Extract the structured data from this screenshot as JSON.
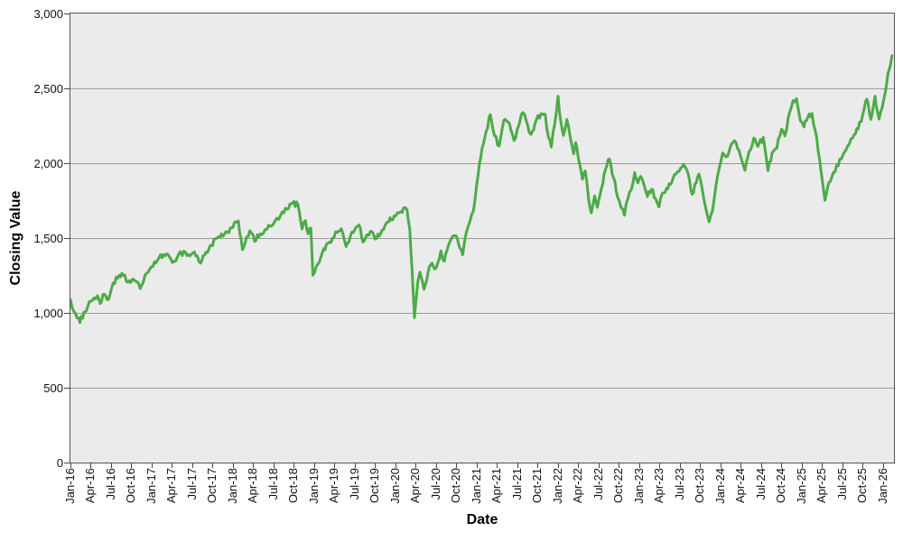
{
  "chart_data": {
    "type": "line",
    "title": "",
    "xlabel": "Date",
    "ylabel": "Closing Value",
    "ylim": [
      0,
      3000
    ],
    "y_tick_interval": 500,
    "y_tick_labels": [
      "0",
      "500",
      "1,000",
      "1,500",
      "2,000",
      "2,500",
      "3,000"
    ],
    "x_tick_labels": [
      "Jan-16",
      "Apr-16",
      "Jul-16",
      "Oct-16",
      "Jan-17",
      "Apr-17",
      "Jul-17",
      "Oct-17",
      "Jan-18",
      "Apr-18",
      "Jul-18",
      "Oct-18",
      "Jan-19",
      "Apr-19",
      "Jul-19",
      "Oct-19",
      "Jan-20",
      "Apr-20",
      "Jul-20",
      "Oct-20",
      "Jan-21",
      "Apr-21",
      "Jul-21",
      "Oct-21",
      "Jan-22",
      "Apr-22",
      "Jul-22",
      "Oct-22",
      "Jan-23",
      "Apr-23",
      "Jul-23",
      "Oct-23",
      "Jan-24",
      "Apr-24",
      "Jul-24",
      "Oct-24",
      "Jan-25",
      "Apr-25",
      "Jul-25",
      "Oct-25",
      "Jan-26"
    ],
    "x_months_per_tick": 3,
    "grid": true,
    "legend": "none",
    "plot_bg": "#ebebeb",
    "grid_color": "#9a9a9a",
    "axis_color": "#545454",
    "noise_amplitude": 20,
    "line_width": 3,
    "series": [
      {
        "name": "Closing Value",
        "color": "#4cab47",
        "x_unit": "months since Jan-2016",
        "points": [
          [
            0,
            1090
          ],
          [
            0.5,
            1010
          ],
          [
            1,
            965
          ],
          [
            1.4,
            935
          ],
          [
            2,
            1005
          ],
          [
            2.6,
            1048
          ],
          [
            3,
            1078
          ],
          [
            3.5,
            1100
          ],
          [
            4,
            1115
          ],
          [
            4.4,
            1062
          ],
          [
            5,
            1125
          ],
          [
            5.6,
            1088
          ],
          [
            6.3,
            1200
          ],
          [
            7,
            1232
          ],
          [
            7.8,
            1250
          ],
          [
            8.5,
            1205
          ],
          [
            9.3,
            1225
          ],
          [
            10.3,
            1162
          ],
          [
            11,
            1250
          ],
          [
            11.7,
            1292
          ],
          [
            12.2,
            1310
          ],
          [
            12.8,
            1348
          ],
          [
            13.3,
            1390
          ],
          [
            14,
            1382
          ],
          [
            14.8,
            1362
          ],
          [
            15.3,
            1345
          ],
          [
            16,
            1395
          ],
          [
            17,
            1405
          ],
          [
            17.6,
            1380
          ],
          [
            18.3,
            1408
          ],
          [
            19.2,
            1332
          ],
          [
            20,
            1405
          ],
          [
            20.8,
            1452
          ],
          [
            21.6,
            1498
          ],
          [
            22.5,
            1512
          ],
          [
            23.2,
            1540
          ],
          [
            24,
            1572
          ],
          [
            24.8,
            1614
          ],
          [
            25.4,
            1422
          ],
          [
            26,
            1505
          ],
          [
            26.5,
            1548
          ],
          [
            27.2,
            1478
          ],
          [
            28,
            1528
          ],
          [
            29,
            1558
          ],
          [
            30,
            1596
          ],
          [
            31,
            1648
          ],
          [
            32,
            1692
          ],
          [
            32.8,
            1734
          ],
          [
            33.6,
            1722
          ],
          [
            34.2,
            1560
          ],
          [
            34.7,
            1616
          ],
          [
            35.1,
            1528
          ],
          [
            35.5,
            1566
          ],
          [
            35.8,
            1252
          ],
          [
            36.3,
            1310
          ],
          [
            37.2,
            1402
          ],
          [
            38,
            1465
          ],
          [
            38.7,
            1498
          ],
          [
            39.4,
            1538
          ],
          [
            40,
            1562
          ],
          [
            40.7,
            1444
          ],
          [
            41.3,
            1508
          ],
          [
            42,
            1558
          ],
          [
            42.6,
            1588
          ],
          [
            43.2,
            1472
          ],
          [
            43.8,
            1522
          ],
          [
            44.3,
            1545
          ],
          [
            45.2,
            1498
          ],
          [
            46,
            1552
          ],
          [
            47,
            1608
          ],
          [
            47.8,
            1648
          ],
          [
            48.5,
            1668
          ],
          [
            49.2,
            1702
          ],
          [
            49.7,
            1688
          ],
          [
            50.1,
            1560
          ],
          [
            50.45,
            1280
          ],
          [
            50.8,
            968
          ],
          [
            51.3,
            1210
          ],
          [
            51.6,
            1272
          ],
          [
            52.2,
            1158
          ],
          [
            52.8,
            1268
          ],
          [
            53.4,
            1332
          ],
          [
            54,
            1300
          ],
          [
            54.7,
            1415
          ],
          [
            55.2,
            1345
          ],
          [
            55.8,
            1450
          ],
          [
            56.5,
            1515
          ],
          [
            57.1,
            1500
          ],
          [
            57.9,
            1388
          ],
          [
            58.5,
            1545
          ],
          [
            59,
            1612
          ],
          [
            59.5,
            1680
          ],
          [
            60,
            1860
          ],
          [
            60.4,
            2000
          ],
          [
            60.8,
            2105
          ],
          [
            61.4,
            2215
          ],
          [
            62,
            2325
          ],
          [
            62.6,
            2185
          ],
          [
            63.3,
            2115
          ],
          [
            64,
            2288
          ],
          [
            64.8,
            2268
          ],
          [
            65.5,
            2152
          ],
          [
            66.2,
            2252
          ],
          [
            66.8,
            2338
          ],
          [
            67.5,
            2255
          ],
          [
            68,
            2192
          ],
          [
            68.8,
            2292
          ],
          [
            69.5,
            2332
          ],
          [
            70.1,
            2326
          ],
          [
            70.6,
            2172
          ],
          [
            71,
            2108
          ],
          [
            71.5,
            2262
          ],
          [
            72,
            2448
          ],
          [
            72.4,
            2282
          ],
          [
            72.8,
            2185
          ],
          [
            73.3,
            2292
          ],
          [
            73.8,
            2172
          ],
          [
            74.3,
            2062
          ],
          [
            74.6,
            2138
          ],
          [
            75.2,
            1992
          ],
          [
            75.6,
            1892
          ],
          [
            76,
            1948
          ],
          [
            76.5,
            1762
          ],
          [
            76.9,
            1668
          ],
          [
            77.4,
            1782
          ],
          [
            77.8,
            1705
          ],
          [
            78.4,
            1832
          ],
          [
            79,
            1958
          ],
          [
            79.6,
            2028
          ],
          [
            80.2,
            1902
          ],
          [
            80.8,
            1772
          ],
          [
            81.3,
            1702
          ],
          [
            81.8,
            1652
          ],
          [
            82.3,
            1762
          ],
          [
            82.8,
            1822
          ],
          [
            83.3,
            1938
          ],
          [
            83.8,
            1868
          ],
          [
            84.2,
            1912
          ],
          [
            84.7,
            1852
          ],
          [
            85.2,
            1778
          ],
          [
            85.8,
            1825
          ],
          [
            86.4,
            1762
          ],
          [
            86.9,
            1708
          ],
          [
            87.4,
            1798
          ],
          [
            88,
            1832
          ],
          [
            88.6,
            1858
          ],
          [
            89,
            1902
          ],
          [
            89.6,
            1942
          ],
          [
            90.1,
            1968
          ],
          [
            90.5,
            1992
          ],
          [
            91,
            1958
          ],
          [
            91.8,
            1792
          ],
          [
            92.4,
            1868
          ],
          [
            92.8,
            1928
          ],
          [
            93.3,
            1822
          ],
          [
            93.8,
            1702
          ],
          [
            94.3,
            1608
          ],
          [
            94.8,
            1682
          ],
          [
            95.3,
            1848
          ],
          [
            95.8,
            1968
          ],
          [
            96.3,
            2068
          ],
          [
            96.8,
            2042
          ],
          [
            97.3,
            2088
          ],
          [
            97.8,
            2138
          ],
          [
            98.3,
            2135
          ],
          [
            98.9,
            2052
          ],
          [
            99.6,
            1952
          ],
          [
            100.2,
            2078
          ],
          [
            100.9,
            2168
          ],
          [
            101.5,
            2112
          ],
          [
            102.3,
            2172
          ],
          [
            103,
            1950
          ],
          [
            103.6,
            2068
          ],
          [
            104.3,
            2102
          ],
          [
            105,
            2228
          ],
          [
            105.5,
            2182
          ],
          [
            106,
            2308
          ],
          [
            106.7,
            2418
          ],
          [
            107.2,
            2432
          ],
          [
            107.8,
            2282
          ],
          [
            108.3,
            2242
          ],
          [
            108.9,
            2310
          ],
          [
            109.5,
            2332
          ],
          [
            110.2,
            2168
          ],
          [
            110.8,
            1958
          ],
          [
            111.4,
            1752
          ],
          [
            112,
            1872
          ],
          [
            112.9,
            1942
          ],
          [
            113.6,
            2028
          ],
          [
            114.5,
            2088
          ],
          [
            115.5,
            2168
          ],
          [
            116.3,
            2228
          ],
          [
            117,
            2328
          ],
          [
            117.6,
            2428
          ],
          [
            118.2,
            2292
          ],
          [
            118.8,
            2448
          ],
          [
            119.4,
            2295
          ],
          [
            120.1,
            2428
          ],
          [
            120.7,
            2598
          ],
          [
            121.3,
            2718
          ]
        ]
      }
    ]
  }
}
